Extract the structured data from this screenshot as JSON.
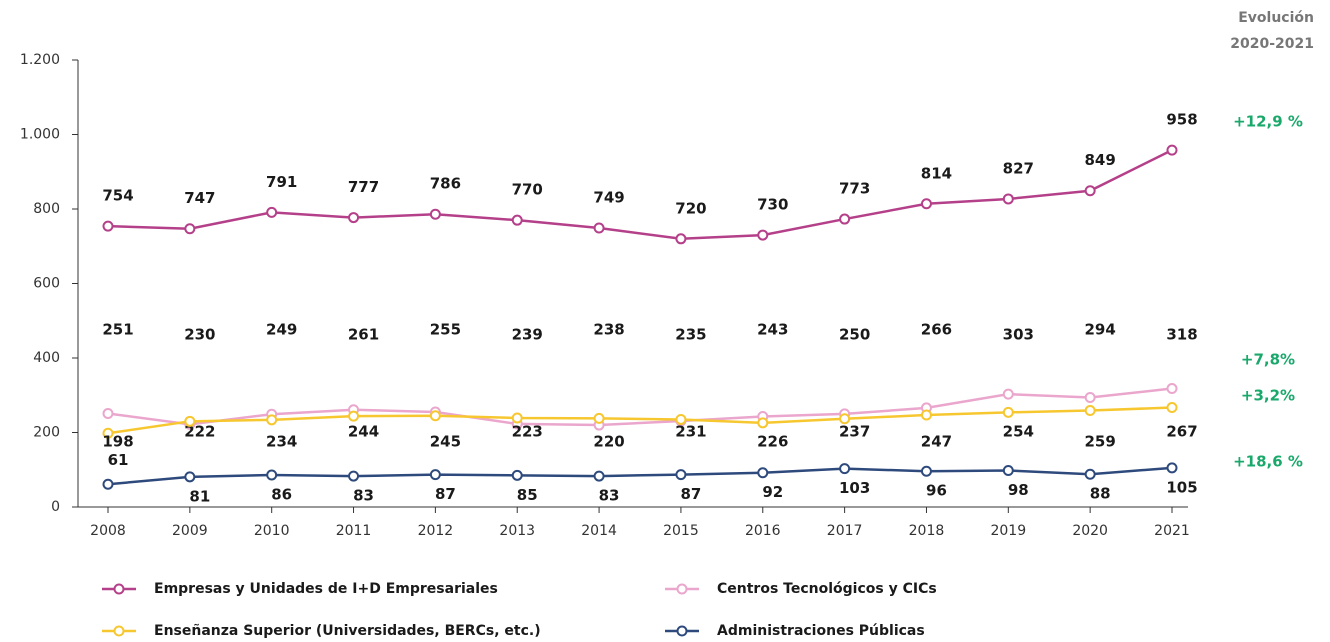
{
  "chart_data": {
    "type": "line",
    "evolution_header": [
      "Evolución",
      "2020-2021"
    ],
    "categories": [
      "2008",
      "2009",
      "2010",
      "2011",
      "2012",
      "2013",
      "2014",
      "2015",
      "2016",
      "2017",
      "2018",
      "2019",
      "2020",
      "2021"
    ],
    "series": [
      {
        "name": "Empresas y Unidades de I+D Empresariales",
        "color": "#b5408a",
        "values": [
          754,
          747,
          791,
          777,
          786,
          770,
          749,
          720,
          730,
          773,
          814,
          827,
          849,
          958
        ]
      },
      {
        "name": "Centros Tecnológicos y CICs",
        "color": "#eaa6cc",
        "values": [
          251,
          222,
          249,
          261,
          255,
          223,
          220,
          231,
          243,
          250,
          266,
          303,
          294,
          318
        ]
      },
      {
        "name": "Enseñanza Superior (Universidades, BERCs, etc.)",
        "color": "#f7c730",
        "values": [
          198,
          230,
          234,
          244,
          245,
          239,
          238,
          235,
          226,
          237,
          247,
          254,
          259,
          267
        ]
      },
      {
        "name": "Administraciones Públicas",
        "color": "#2e4a7d",
        "values": [
          61,
          81,
          86,
          83,
          87,
          85,
          83,
          87,
          92,
          103,
          96,
          98,
          88,
          105
        ]
      }
    ],
    "annotations": [
      "+12,9 %",
      "+7,8%",
      "+3,2%",
      "+18,6 %"
    ],
    "ylim": [
      0,
      1200
    ],
    "yticks": [
      0,
      200,
      400,
      600,
      800,
      {
        "value": 1000,
        "label": "1.000"
      },
      {
        "value": 1200,
        "label": "1.200"
      }
    ]
  }
}
